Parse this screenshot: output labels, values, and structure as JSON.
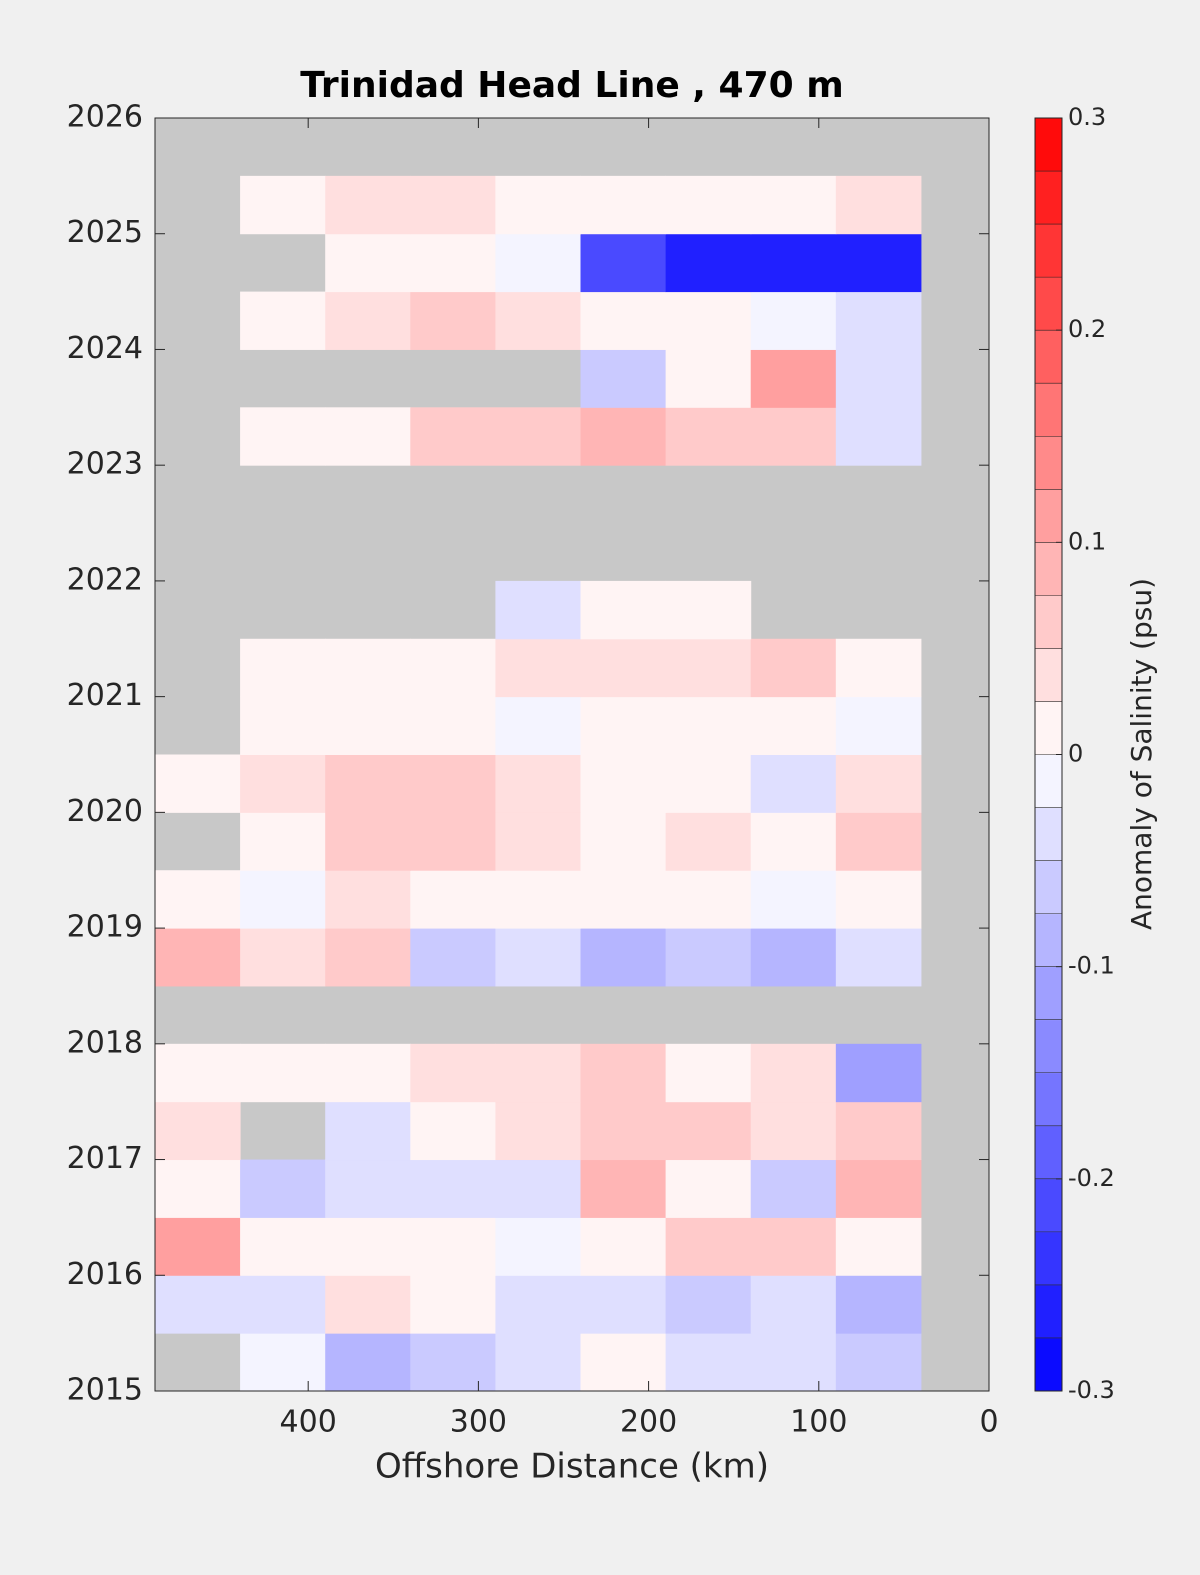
{
  "chart_data": {
    "type": "heatmap",
    "title": "Trinidad Head Line , 470 m",
    "x_label": "Offshore Distance (km)",
    "colorbar_label": "Anomaly of Salinity (psu)",
    "x": [
      465,
      415,
      365,
      315,
      265,
      215,
      165,
      115,
      65
    ],
    "y": [
      2015.25,
      2015.75,
      2016.25,
      2016.75,
      2017.25,
      2017.75,
      2018.25,
      2018.75,
      2019.25,
      2019.75,
      2020.25,
      2020.75,
      2021.25,
      2021.75,
      2022.25,
      2022.75,
      2023.25,
      2023.75,
      2024.25,
      2024.75,
      2025.25,
      2025.75
    ],
    "z": [
      [
        null,
        -0.02,
        -0.08,
        -0.06,
        -0.03,
        0.02,
        -0.03,
        -0.04,
        -0.06
      ],
      [
        -0.04,
        -0.05,
        0.03,
        0,
        -0.03,
        -0.04,
        -0.06,
        -0.05,
        -0.1
      ],
      [
        0.1,
        0.02,
        0,
        0.01,
        -0.02,
        0,
        0.06,
        0.05,
        0.02
      ],
      [
        0,
        -0.06,
        -0.05,
        -0.05,
        -0.04,
        0.08,
        0.02,
        -0.06,
        0.09
      ],
      [
        0.03,
        null,
        -0.03,
        0.02,
        0.03,
        0.06,
        0.05,
        0.04,
        0.05
      ],
      [
        0,
        0.01,
        0.02,
        0.03,
        0.04,
        0.06,
        0.02,
        0.04,
        -0.12
      ],
      [
        null,
        null,
        null,
        null,
        null,
        null,
        null,
        null,
        null
      ],
      [
        0.08,
        0.03,
        0.06,
        -0.06,
        -0.04,
        -0.1,
        -0.06,
        -0.1,
        -0.03
      ],
      [
        0,
        -0.02,
        0.03,
        0,
        0.02,
        0.01,
        0,
        -0.02,
        0
      ],
      [
        null,
        0.02,
        0.06,
        0.05,
        0.03,
        0.02,
        0.04,
        0.02,
        0.05
      ],
      [
        0.02,
        0.04,
        0.05,
        0.06,
        0.04,
        0.02,
        0,
        -0.03,
        0.03
      ],
      [
        null,
        0.02,
        0.01,
        0,
        -0.02,
        0,
        0,
        0,
        -0.01
      ],
      [
        null,
        0.02,
        0.02,
        0.01,
        0.03,
        0.03,
        0.04,
        0.06,
        0
      ],
      [
        null,
        null,
        null,
        null,
        -0.04,
        0,
        0,
        null,
        null
      ],
      [
        null,
        null,
        null,
        null,
        null,
        null,
        null,
        null,
        null
      ],
      [
        null,
        null,
        null,
        null,
        null,
        null,
        null,
        null,
        null
      ],
      [
        null,
        0.01,
        0.02,
        0.06,
        0.05,
        0.08,
        0.07,
        0.05,
        -0.03
      ],
      [
        null,
        null,
        null,
        null,
        null,
        -0.06,
        0.02,
        0.12,
        -0.03
      ],
      [
        null,
        0.01,
        0.03,
        0.06,
        0.03,
        0.02,
        0,
        -0.02,
        -0.04
      ],
      [
        null,
        null,
        0.01,
        0,
        -0.02,
        -0.2,
        -0.25,
        -0.27,
        -0.26
      ],
      [
        null,
        0.02,
        0.03,
        0.03,
        0.02,
        0,
        0.02,
        0.01,
        0.03
      ],
      [
        null,
        null,
        null,
        null,
        null,
        null,
        null,
        null,
        null
      ]
    ],
    "xlim": [
      490,
      0
    ],
    "xticks": [
      400,
      300,
      200,
      100,
      0
    ],
    "ylim": [
      2015,
      2026
    ],
    "yticks": [
      2015,
      2016,
      2017,
      2018,
      2019,
      2020,
      2021,
      2022,
      2023,
      2024,
      2025,
      2026
    ],
    "zlim": [
      -0.3,
      0.3
    ],
    "zticks": [
      -0.3,
      -0.2,
      -0.1,
      0,
      0.1,
      0.2,
      0.3
    ],
    "n_levels": 24,
    "colors": [
      "#0000ff",
      "#ffffff",
      "#ff0000"
    ],
    "missing_color": "#c8c8c8"
  }
}
